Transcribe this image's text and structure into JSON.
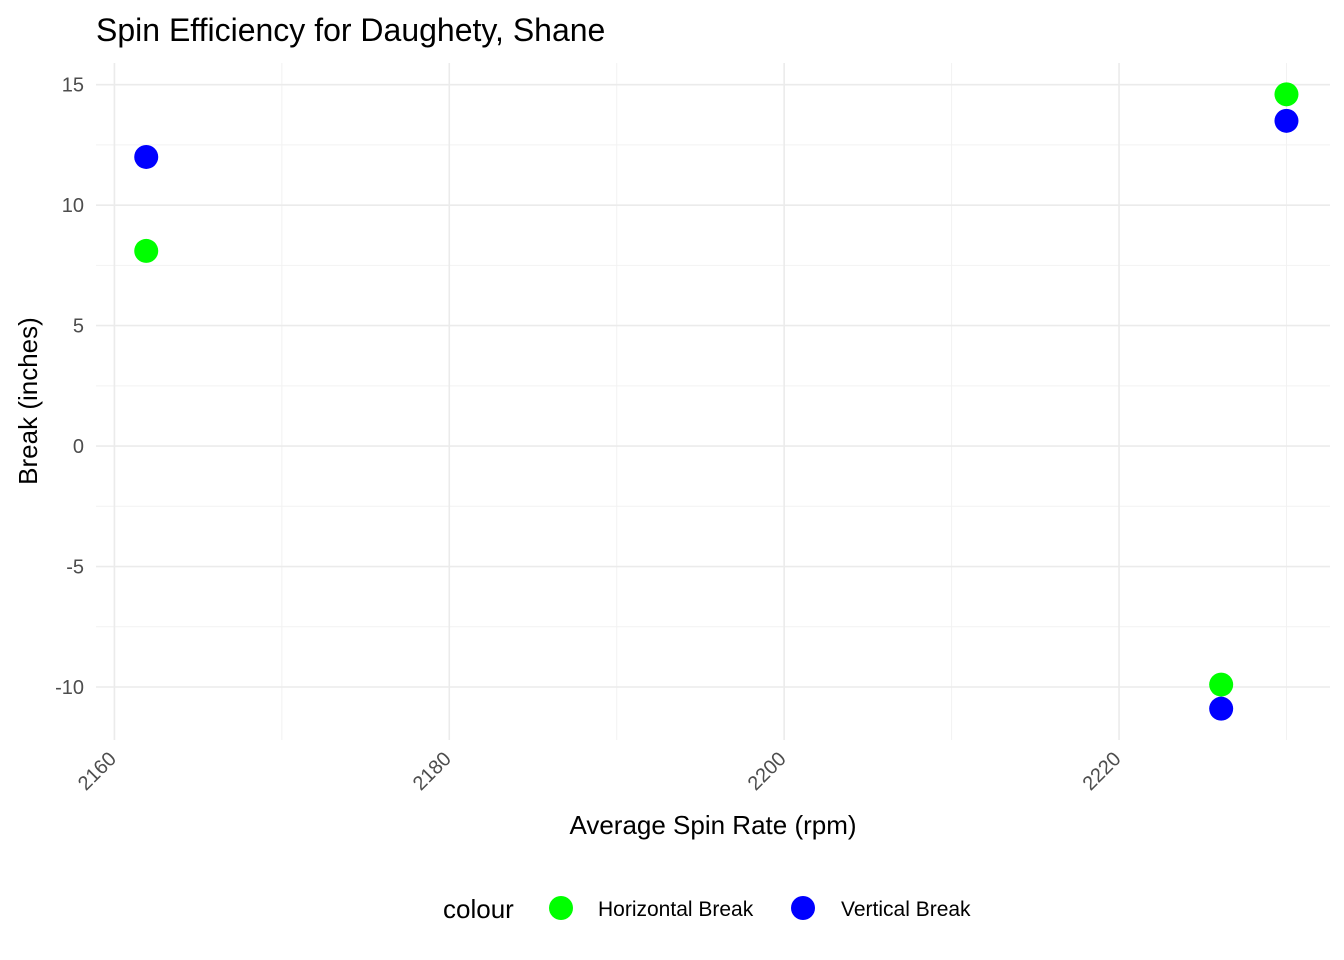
{
  "chart_data": {
    "type": "scatter",
    "title": "Spin Efficiency for Daughety, Shane",
    "xlabel": "Average Spin Rate (rpm)",
    "ylabel": "Break (inches)",
    "xlim": [
      2158.9,
      2232.6
    ],
    "ylim": [
      -12.2,
      15.9
    ],
    "x_ticks": [
      2160,
      2180,
      2200,
      2220
    ],
    "x_tick_labels": [
      "2160",
      "2180",
      "2200",
      "2220"
    ],
    "y_ticks": [
      15,
      10,
      5,
      0,
      -5,
      -10
    ],
    "y_tick_labels": [
      "15",
      "10",
      "5",
      "0",
      "-5",
      "-10"
    ],
    "grid": true,
    "legend": {
      "title": "colour",
      "position": "bottom"
    },
    "series": [
      {
        "name": "Horizontal Break",
        "color": "#00ff00",
        "points": [
          {
            "x": 2161.9,
            "y": 8.1
          },
          {
            "x": 2226.1,
            "y": -9.9
          },
          {
            "x": 2230.0,
            "y": 14.6
          }
        ]
      },
      {
        "name": "Vertical Break",
        "color": "#0000ff",
        "points": [
          {
            "x": 2161.9,
            "y": 12.0
          },
          {
            "x": 2226.1,
            "y": -10.9
          },
          {
            "x": 2230.0,
            "y": 13.5
          }
        ]
      }
    ]
  }
}
